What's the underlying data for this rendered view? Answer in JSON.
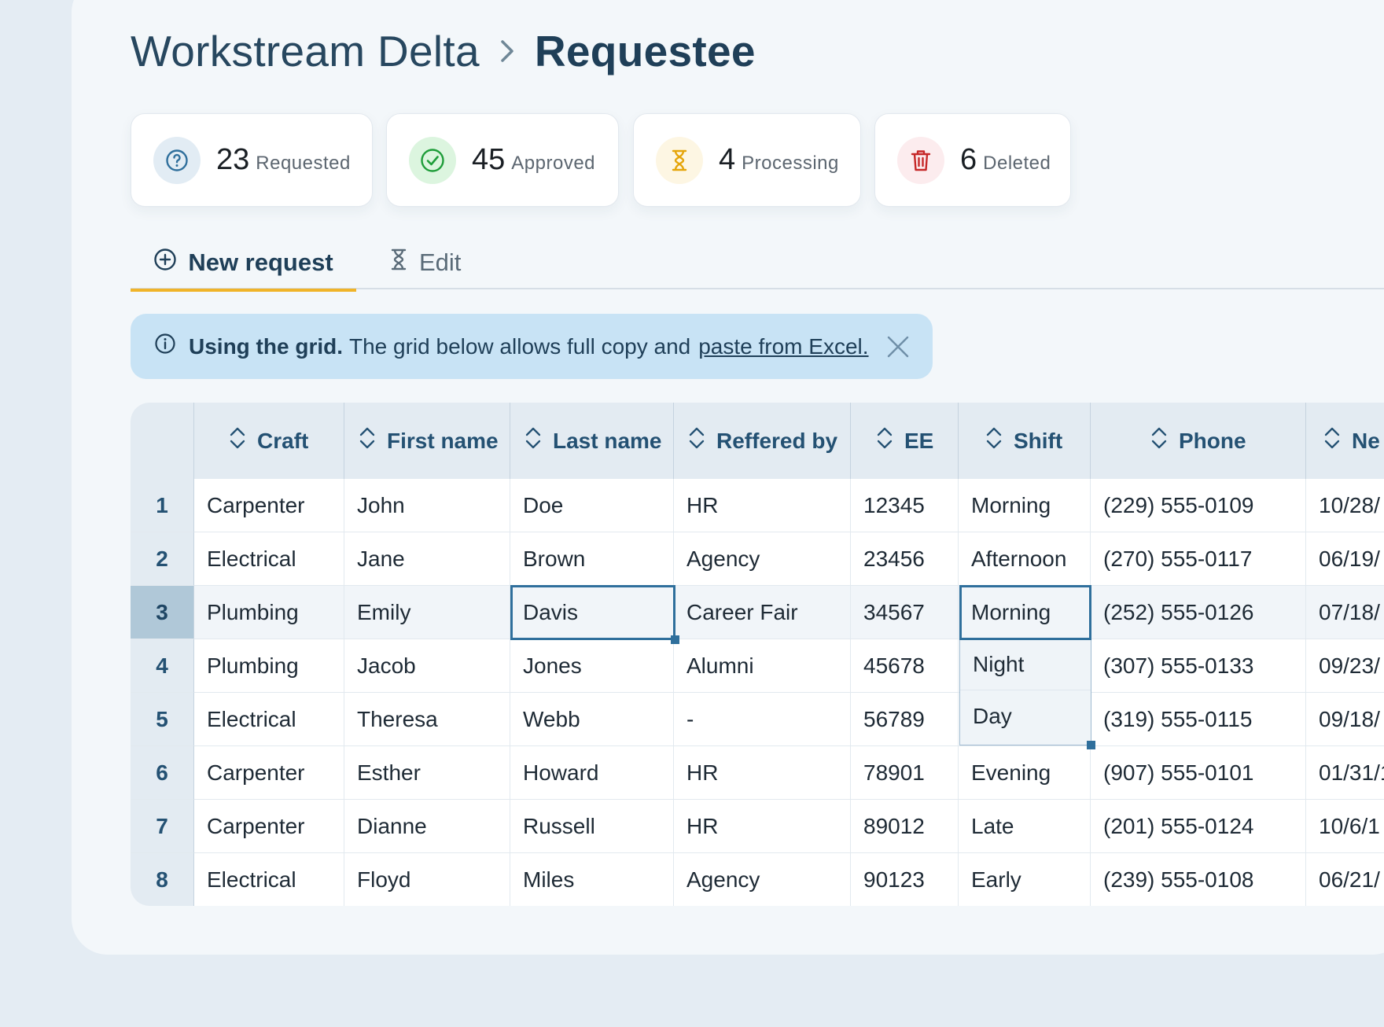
{
  "breadcrumb": {
    "parent": "Workstream Delta",
    "current": "Requestee"
  },
  "stats": [
    {
      "count": "23",
      "label": "Requested",
      "icon": "question-circle-icon",
      "color": "#2f6f9c",
      "bg": "#e2ecf4"
    },
    {
      "count": "45",
      "label": "Approved",
      "icon": "check-circle-icon",
      "color": "#1f9d3a",
      "bg": "#dcf5df"
    },
    {
      "count": "4",
      "label": "Processing",
      "icon": "hourglass-icon",
      "color": "#e5a50a",
      "bg": "#fdf6e3"
    },
    {
      "count": "6",
      "label": "Deleted",
      "icon": "trash-icon",
      "color": "#c62828",
      "bg": "#fcecee"
    }
  ],
  "tabs": [
    {
      "label": "New request",
      "icon": "plus-circle-icon",
      "active": true
    },
    {
      "label": "Edit",
      "icon": "hourglass-icon",
      "active": false
    }
  ],
  "banner": {
    "strong": "Using the grid.",
    "text": "The grid below allows full copy and",
    "link": "paste from Excel.",
    "icon": "info-icon",
    "close_icon": "close-icon"
  },
  "grid": {
    "columns": [
      "Craft",
      "First name",
      "Last name",
      "Reffered by",
      "EE",
      "Shift",
      "Phone",
      "Ne"
    ],
    "rows": [
      [
        "1",
        "Carpenter",
        "John",
        "Doe",
        "HR",
        "12345",
        "Morning",
        "(229) 555-0109",
        "10/28/"
      ],
      [
        "2",
        "Electrical",
        "Jane",
        "Brown",
        "Agency",
        "23456",
        "Afternoon",
        "(270) 555-0117",
        "06/19/"
      ],
      [
        "3",
        "Plumbing",
        "Emily",
        "Davis",
        "Career Fair",
        "34567",
        "Morning",
        "(252) 555-0126",
        "07/18/"
      ],
      [
        "4",
        "Plumbing",
        "Jacob",
        "Jones",
        "Alumni",
        "45678",
        "",
        "(307) 555-0133",
        "09/23/"
      ],
      [
        "5",
        "Electrical",
        "Theresa",
        "Webb",
        "-",
        "56789",
        "",
        "(319) 555-0115",
        "09/18/"
      ],
      [
        "6",
        "Carpenter",
        "Esther",
        "Howard",
        "HR",
        "78901",
        "Evening",
        "(907) 555-0101",
        "01/31/1"
      ],
      [
        "7",
        "Carpenter",
        "Dianne",
        "Russell",
        "HR",
        "89012",
        "Late",
        "(201) 555-0124",
        "10/6/1"
      ],
      [
        "8",
        "Electrical",
        "Floyd",
        "Miles",
        "Agency",
        "90123",
        "Early",
        "(239) 555-0108",
        "06/21/"
      ]
    ],
    "selected_row": 3,
    "shift_dropdown_options": [
      "Night",
      "Day"
    ],
    "sort_icon": "sort-icon"
  }
}
